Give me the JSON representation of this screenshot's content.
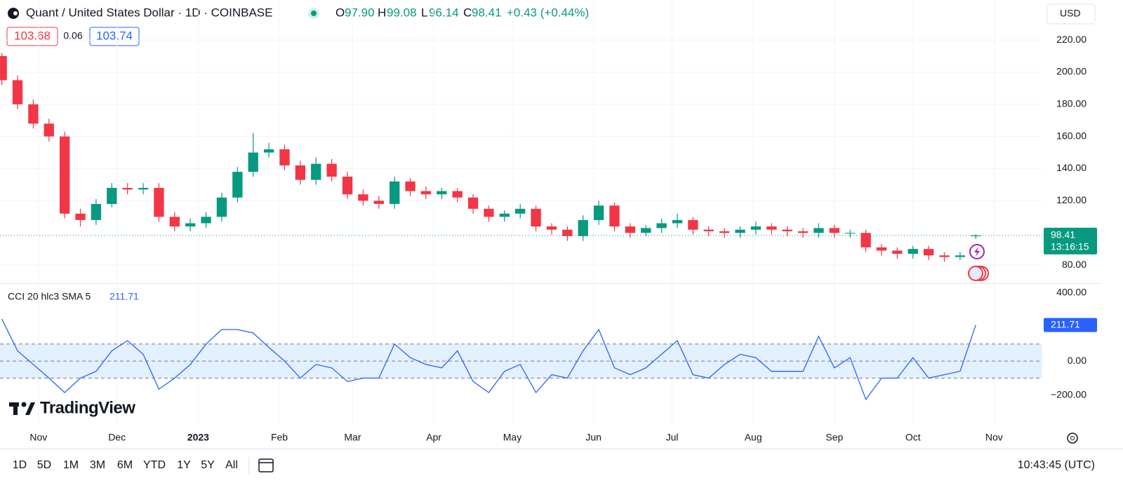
{
  "header": {
    "title": "Quant / United States Dollar · 1D · COINBASE",
    "ohlc": [
      {
        "key": "O",
        "value": "97.90"
      },
      {
        "key": "H",
        "value": "99.08"
      },
      {
        "key": "L",
        "value": "96.14"
      },
      {
        "key": "C",
        "value": "98.41"
      }
    ],
    "change": "+0.43 (+0.44%)",
    "bid": "103.68",
    "spread": "0.06",
    "ask": "103.74",
    "currency": "USD"
  },
  "logo": "TradingView",
  "toolbar": {
    "ranges": [
      "1D",
      "5D",
      "1M",
      "3M",
      "6M",
      "YTD",
      "1Y",
      "5Y",
      "All"
    ],
    "time": "10:43:45 (UTC)"
  },
  "chart_data": [
    {
      "type": "candlestick",
      "up_color": "#089981",
      "down_color": "#f23645",
      "x": [
        -14,
        -8,
        -2,
        4,
        10,
        16,
        22,
        28,
        34,
        40,
        46,
        52,
        58,
        64,
        70,
        76,
        82,
        88,
        94,
        100,
        106,
        112,
        118,
        124,
        130,
        136,
        142,
        148,
        154,
        160,
        166,
        172,
        178,
        184,
        190,
        196,
        202,
        208,
        214,
        220,
        226,
        232,
        238,
        244,
        250,
        256,
        262,
        268,
        274,
        280,
        286,
        292,
        298,
        304,
        310,
        316,
        322,
        328,
        334,
        340,
        346,
        352,
        358
      ],
      "open": [
        210,
        195,
        180,
        168,
        160,
        112,
        108,
        118,
        128,
        127,
        128,
        110,
        104,
        106,
        110,
        122,
        138,
        150,
        152,
        142,
        133,
        143,
        135,
        124,
        120,
        118,
        132,
        126,
        124,
        126,
        122,
        115,
        110,
        112,
        115,
        104,
        102,
        98,
        108,
        117,
        104,
        100,
        103,
        106,
        108,
        102,
        101,
        100,
        102,
        104,
        102,
        101,
        100,
        103,
        100,
        100,
        91,
        89,
        87,
        90,
        86,
        85,
        97.9
      ],
      "high": [
        212,
        198,
        183,
        171,
        163,
        115,
        121,
        131,
        131,
        131,
        131,
        113,
        109,
        113,
        125,
        141,
        162,
        156,
        155,
        145,
        147,
        146,
        138,
        127,
        123,
        135,
        134,
        129,
        128,
        128,
        124,
        117,
        114,
        118,
        117,
        106,
        104,
        111,
        120,
        119,
        106,
        105,
        109,
        112,
        110,
        104,
        103,
        104,
        107,
        106,
        104,
        103,
        106,
        105,
        102,
        102,
        93,
        91,
        92,
        92,
        88,
        88,
        99.08
      ],
      "low": [
        192,
        177,
        165,
        157,
        109,
        104,
        105,
        116,
        124,
        124,
        107,
        101,
        101,
        103,
        107,
        119,
        135,
        147,
        139,
        130,
        130,
        132,
        121,
        117,
        115,
        115,
        123,
        121,
        121,
        119,
        112,
        107,
        107,
        109,
        101,
        99,
        95,
        95,
        105,
        101,
        97,
        98,
        100,
        103,
        99,
        98,
        97,
        97,
        99,
        99,
        98,
        97,
        97,
        97,
        97,
        88,
        86,
        84,
        84,
        83,
        82,
        83,
        96.14
      ],
      "close": [
        195,
        180,
        168,
        160,
        112,
        108,
        118,
        128,
        127,
        128,
        110,
        104,
        106,
        110,
        122,
        138,
        150,
        152,
        142,
        133,
        143,
        135,
        124,
        120,
        118,
        132,
        126,
        124,
        126,
        122,
        115,
        110,
        112,
        115,
        104,
        102,
        98,
        108,
        117,
        104,
        100,
        103,
        106,
        108,
        102,
        101,
        100,
        102,
        104,
        102,
        101,
        100,
        103,
        100,
        100,
        91,
        89,
        87,
        90,
        86,
        85,
        86,
        98.41
      ],
      "xlim": [
        -14.7,
        383.4
      ],
      "xticks": [
        {
          "value": 0,
          "label": "Nov"
        },
        {
          "value": 30,
          "label": "Dec"
        },
        {
          "value": 61,
          "label": "2023",
          "style": "bold"
        },
        {
          "value": 92,
          "label": "Feb"
        },
        {
          "value": 120,
          "label": "Mar"
        },
        {
          "value": 151,
          "label": "Apr"
        },
        {
          "value": 181,
          "label": "May"
        },
        {
          "value": 212,
          "label": "Jun"
        },
        {
          "value": 242,
          "label": "Jul"
        },
        {
          "value": 273,
          "label": "Aug"
        },
        {
          "value": 304,
          "label": "Sep"
        },
        {
          "value": 334,
          "label": "Oct"
        },
        {
          "value": 365,
          "label": "Nov"
        }
      ],
      "ylim": [
        68.7,
        244.9
      ],
      "yticks": [
        {
          "value": 80,
          "label": "80.00"
        },
        {
          "value": 120,
          "label": "120.00"
        },
        {
          "value": 140,
          "label": "140.00"
        },
        {
          "value": 160,
          "label": "160.00"
        },
        {
          "value": 180,
          "label": "180.00"
        },
        {
          "value": 200,
          "label": "200.00"
        },
        {
          "value": 220,
          "label": "220.00"
        }
      ],
      "last_price": {
        "value": 98.41,
        "label": "98.41",
        "countdown": "13:16:15"
      },
      "grid": true
    },
    {
      "type": "line",
      "name": "CCI 20 hlc3 SMA 5",
      "color": "#2962ff",
      "x": [
        -14,
        -8,
        -2,
        4,
        10,
        16,
        22,
        28,
        34,
        40,
        46,
        52,
        58,
        64,
        70,
        76,
        82,
        88,
        94,
        100,
        106,
        112,
        118,
        124,
        130,
        136,
        142,
        148,
        154,
        160,
        166,
        172,
        178,
        184,
        190,
        196,
        202,
        208,
        214,
        220,
        226,
        232,
        238,
        244,
        250,
        256,
        262,
        268,
        274,
        280,
        286,
        292,
        298,
        304,
        310,
        316,
        322,
        328,
        334,
        340,
        346,
        352,
        358
      ],
      "values": [
        247,
        60,
        -20,
        -100,
        -185,
        -100,
        -60,
        60,
        120,
        40,
        -165,
        -100,
        -20,
        100,
        185,
        185,
        165,
        80,
        0,
        -100,
        -20,
        -40,
        -120,
        -100,
        -100,
        100,
        20,
        -20,
        -40,
        60,
        -120,
        -185,
        -60,
        -20,
        -185,
        -80,
        -100,
        60,
        185,
        -40,
        -80,
        -40,
        40,
        120,
        -80,
        -100,
        -20,
        40,
        20,
        -60,
        -60,
        -60,
        145,
        -40,
        20,
        -225,
        -100,
        -100,
        20,
        -100,
        -80,
        -60,
        211.71
      ],
      "value_label": "211.71",
      "xlim": [
        -14.7,
        383.4
      ],
      "ylim": [
        -370,
        453
      ],
      "yticks": [
        {
          "value": -200,
          "label": "−200.00"
        },
        {
          "value": 0,
          "label": "0.00"
        },
        {
          "value": 400,
          "label": "400.00"
        }
      ],
      "bands": [
        100,
        0,
        -100
      ],
      "band_fill": "#e3f0fd"
    }
  ]
}
